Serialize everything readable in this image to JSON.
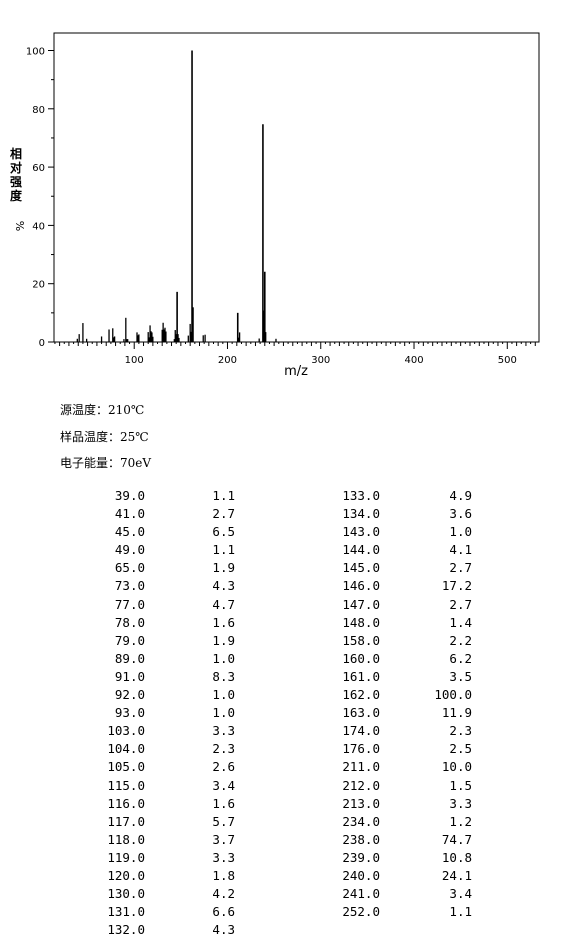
{
  "chart_data": {
    "type": "bar",
    "xlabel": "m/z",
    "ylabel": "相对强度",
    "ylabel_unit": "%",
    "xlim": [
      14,
      534
    ],
    "ylim": [
      0,
      106
    ],
    "xticks": [
      "100",
      "200",
      "300",
      "400",
      "500"
    ],
    "yticks": [
      "0",
      "20",
      "40",
      "60",
      "80",
      "100"
    ],
    "peaks": [
      {
        "mz": 39.0,
        "intensity": 1.1
      },
      {
        "mz": 41.0,
        "intensity": 2.7
      },
      {
        "mz": 45.0,
        "intensity": 6.5
      },
      {
        "mz": 49.0,
        "intensity": 1.1
      },
      {
        "mz": 65.0,
        "intensity": 1.9
      },
      {
        "mz": 73.0,
        "intensity": 4.3
      },
      {
        "mz": 77.0,
        "intensity": 4.7
      },
      {
        "mz": 78.0,
        "intensity": 1.6
      },
      {
        "mz": 79.0,
        "intensity": 1.9
      },
      {
        "mz": 89.0,
        "intensity": 1.0
      },
      {
        "mz": 91.0,
        "intensity": 8.3
      },
      {
        "mz": 92.0,
        "intensity": 1.0
      },
      {
        "mz": 93.0,
        "intensity": 1.0
      },
      {
        "mz": 103.0,
        "intensity": 3.3
      },
      {
        "mz": 104.0,
        "intensity": 2.3
      },
      {
        "mz": 105.0,
        "intensity": 2.6
      },
      {
        "mz": 115.0,
        "intensity": 3.4
      },
      {
        "mz": 116.0,
        "intensity": 1.6
      },
      {
        "mz": 117.0,
        "intensity": 5.7
      },
      {
        "mz": 118.0,
        "intensity": 3.7
      },
      {
        "mz": 119.0,
        "intensity": 3.3
      },
      {
        "mz": 120.0,
        "intensity": 1.8
      },
      {
        "mz": 130.0,
        "intensity": 4.2
      },
      {
        "mz": 131.0,
        "intensity": 6.6
      },
      {
        "mz": 132.0,
        "intensity": 4.3
      },
      {
        "mz": 133.0,
        "intensity": 4.9
      },
      {
        "mz": 134.0,
        "intensity": 3.6
      },
      {
        "mz": 143.0,
        "intensity": 1.0
      },
      {
        "mz": 144.0,
        "intensity": 4.1
      },
      {
        "mz": 145.0,
        "intensity": 2.7
      },
      {
        "mz": 146.0,
        "intensity": 17.2
      },
      {
        "mz": 147.0,
        "intensity": 2.7
      },
      {
        "mz": 148.0,
        "intensity": 1.4
      },
      {
        "mz": 158.0,
        "intensity": 2.2
      },
      {
        "mz": 160.0,
        "intensity": 6.2
      },
      {
        "mz": 161.0,
        "intensity": 3.5
      },
      {
        "mz": 162.0,
        "intensity": 100.0
      },
      {
        "mz": 163.0,
        "intensity": 11.9
      },
      {
        "mz": 174.0,
        "intensity": 2.3
      },
      {
        "mz": 176.0,
        "intensity": 2.5
      },
      {
        "mz": 211.0,
        "intensity": 10.0
      },
      {
        "mz": 212.0,
        "intensity": 1.5
      },
      {
        "mz": 213.0,
        "intensity": 3.3
      },
      {
        "mz": 234.0,
        "intensity": 1.2
      },
      {
        "mz": 238.0,
        "intensity": 74.7
      },
      {
        "mz": 239.0,
        "intensity": 10.8
      },
      {
        "mz": 240.0,
        "intensity": 24.1
      },
      {
        "mz": 241.0,
        "intensity": 3.4
      },
      {
        "mz": 252.0,
        "intensity": 1.1
      }
    ]
  },
  "conditions": {
    "source_temp": "源温度：210℃",
    "sample_temp": "样品温度：25℃",
    "electron_energy": "电子能量：70eV"
  },
  "table": {
    "left": [
      [
        "39.0",
        "1.1"
      ],
      [
        "41.0",
        "2.7"
      ],
      [
        "45.0",
        "6.5"
      ],
      [
        "49.0",
        "1.1"
      ],
      [
        "65.0",
        "1.9"
      ],
      [
        "73.0",
        "4.3"
      ],
      [
        "77.0",
        "4.7"
      ],
      [
        "78.0",
        "1.6"
      ],
      [
        "79.0",
        "1.9"
      ],
      [
        "89.0",
        "1.0"
      ],
      [
        "91.0",
        "8.3"
      ],
      [
        "92.0",
        "1.0"
      ],
      [
        "93.0",
        "1.0"
      ],
      [
        "103.0",
        "3.3"
      ],
      [
        "104.0",
        "2.3"
      ],
      [
        "105.0",
        "2.6"
      ],
      [
        "115.0",
        "3.4"
      ],
      [
        "116.0",
        "1.6"
      ],
      [
        "117.0",
        "5.7"
      ],
      [
        "118.0",
        "3.7"
      ],
      [
        "119.0",
        "3.3"
      ],
      [
        "120.0",
        "1.8"
      ],
      [
        "130.0",
        "4.2"
      ],
      [
        "131.0",
        "6.6"
      ],
      [
        "132.0",
        "4.3"
      ]
    ],
    "right": [
      [
        "133.0",
        "4.9"
      ],
      [
        "134.0",
        "3.6"
      ],
      [
        "143.0",
        "1.0"
      ],
      [
        "144.0",
        "4.1"
      ],
      [
        "145.0",
        "2.7"
      ],
      [
        "146.0",
        "17.2"
      ],
      [
        "147.0",
        "2.7"
      ],
      [
        "148.0",
        "1.4"
      ],
      [
        "158.0",
        "2.2"
      ],
      [
        "160.0",
        "6.2"
      ],
      [
        "161.0",
        "3.5"
      ],
      [
        "162.0",
        "100.0"
      ],
      [
        "163.0",
        "11.9"
      ],
      [
        "174.0",
        "2.3"
      ],
      [
        "176.0",
        "2.5"
      ],
      [
        "211.0",
        "10.0"
      ],
      [
        "212.0",
        "1.5"
      ],
      [
        "213.0",
        "3.3"
      ],
      [
        "234.0",
        "1.2"
      ],
      [
        "238.0",
        "74.7"
      ],
      [
        "239.0",
        "10.8"
      ],
      [
        "240.0",
        "24.1"
      ],
      [
        "241.0",
        "3.4"
      ],
      [
        "252.0",
        "1.1"
      ]
    ]
  }
}
